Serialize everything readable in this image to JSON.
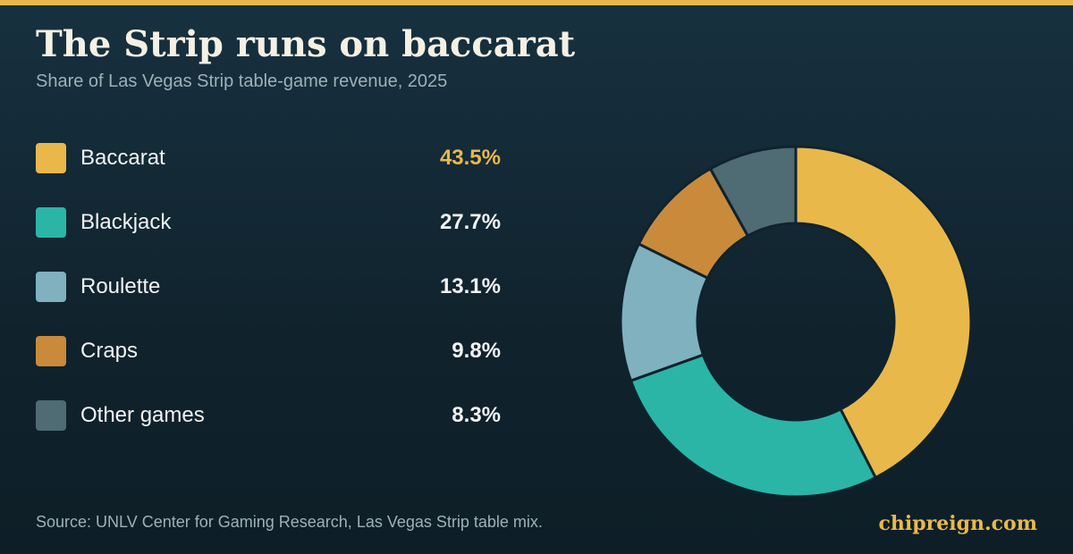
{
  "accent_color": "#e9b84b",
  "title": "The Strip runs on baccarat",
  "subtitle": "Share of Las Vegas Strip table-game revenue, 2025",
  "source": "Source: UNLV Center for Gaming Research, Las Vegas Strip table mix.",
  "brand": "chipreign.com",
  "legend": [
    {
      "label": "Baccarat",
      "value": "43.5%",
      "color": "#e9b84b"
    },
    {
      "label": "Blackjack",
      "value": "27.7%",
      "color": "#2bb5a7"
    },
    {
      "label": "Roulette",
      "value": "13.1%",
      "color": "#80b1bf"
    },
    {
      "label": "Craps",
      "value": "9.8%",
      "color": "#c98a3c"
    },
    {
      "label": "Other games",
      "value": "8.3%",
      "color": "#4f6b74"
    }
  ],
  "chart_data": {
    "type": "pie",
    "variant": "donut",
    "title": "The Strip runs on baccarat",
    "subtitle": "Share of Las Vegas Strip table-game revenue, 2025",
    "categories": [
      "Baccarat",
      "Blackjack",
      "Roulette",
      "Craps",
      "Other games"
    ],
    "values": [
      43.5,
      27.7,
      13.1,
      9.8,
      8.3
    ],
    "unit": "%",
    "colors": [
      "#e9b84b",
      "#2bb5a7",
      "#80b1bf",
      "#c98a3c",
      "#4f6b74"
    ],
    "legend_position": "left"
  }
}
